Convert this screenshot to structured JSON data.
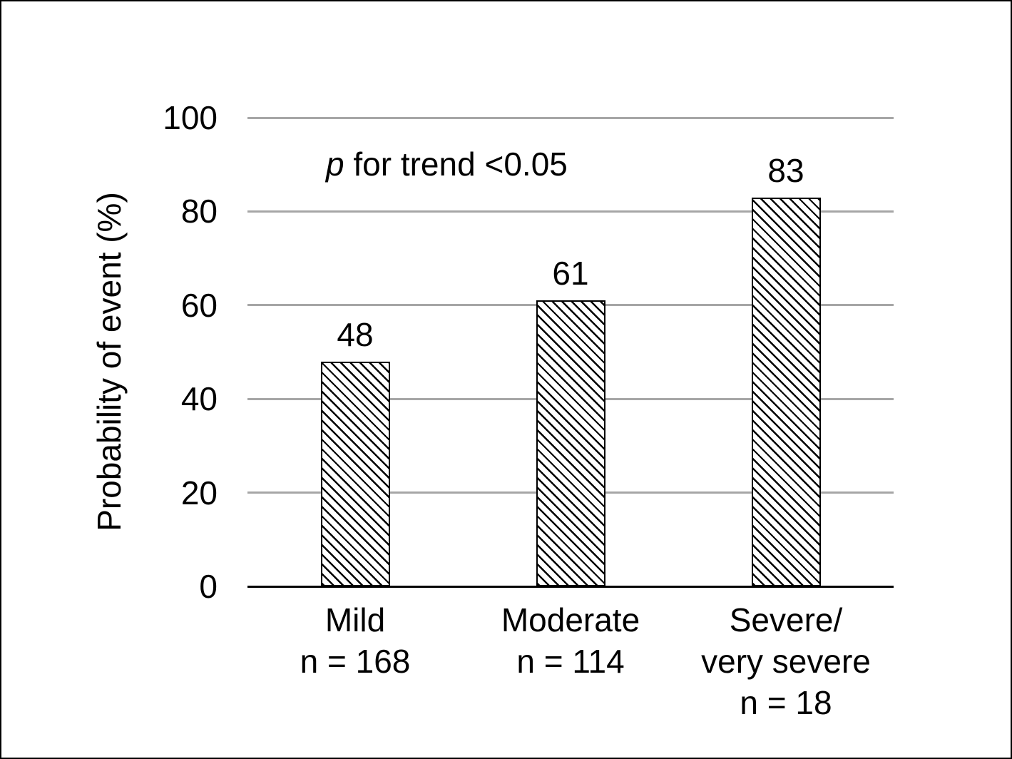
{
  "chart_data": {
    "type": "bar",
    "title": "",
    "xlabel": "",
    "ylabel": "Probability of event (%)",
    "ylim": [
      0,
      100
    ],
    "yticks": [
      0,
      20,
      40,
      60,
      80,
      100
    ],
    "grid": true,
    "legend": "none",
    "bar_style": "diagonal-hatch",
    "annotation": "p for trend <0.05",
    "categories": [
      "Mild",
      "Moderate",
      "Severe/very severe"
    ],
    "n_per_group": [
      168,
      114,
      18
    ],
    "values": [
      48,
      61,
      83
    ],
    "bar_labels": [
      "48",
      "61",
      "83"
    ],
    "category_tick_lines": [
      [
        "Mild",
        "n = 168"
      ],
      [
        "Moderate",
        "n = 114"
      ],
      [
        "Severe/",
        "very severe",
        "n = 18"
      ]
    ]
  },
  "annotation_parts": {
    "italic": "p",
    "rest": " for trend <0.05"
  },
  "colors": {
    "bar_fill": "#ffffff",
    "hatch": "#000000",
    "gridline": "#a6a6a6",
    "axis": "#000000",
    "text": "#000000",
    "background": "#ffffff",
    "frame_border": "#000000"
  }
}
